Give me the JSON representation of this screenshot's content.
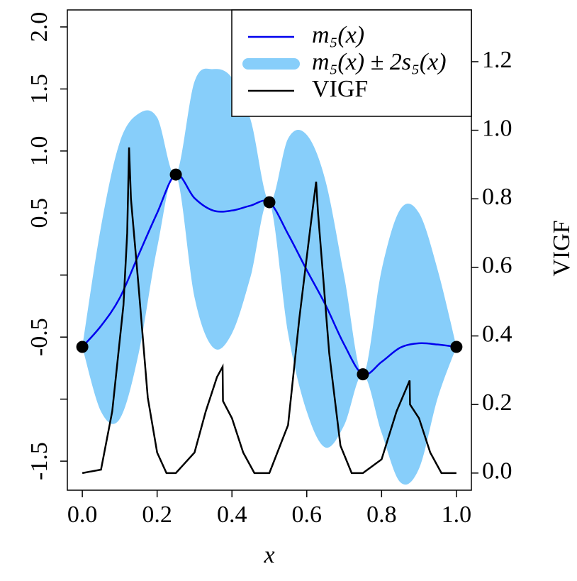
{
  "chart_data": {
    "type": "line",
    "xlabel": "x",
    "y2label": "VIGF",
    "xlim": [
      -0.04,
      1.04
    ],
    "ylim": [
      -1.734,
      2.137
    ],
    "y2lim": [
      -0.05,
      1.351
    ],
    "xticks": [
      {
        "value": 0,
        "label": "0.0"
      },
      {
        "value": 0.2,
        "label": "0.2"
      },
      {
        "value": 0.4,
        "label": "0.4"
      },
      {
        "value": 0.6,
        "label": "0.6"
      },
      {
        "value": 0.8,
        "label": "0.8"
      },
      {
        "value": 1,
        "label": "1.0"
      }
    ],
    "yticks": [
      {
        "value": -1.5,
        "label": "-1.5"
      },
      {
        "value": -1,
        "label": null
      },
      {
        "value": -0.5,
        "label": "-0.5"
      },
      {
        "value": 0,
        "label": null
      },
      {
        "value": 0.5,
        "label": "0.5"
      },
      {
        "value": 1,
        "label": "1.0"
      },
      {
        "value": 1.5,
        "label": "1.5"
      },
      {
        "value": 2,
        "label": "2.0"
      }
    ],
    "y2ticks": [
      {
        "value": 0,
        "label": "0.0"
      },
      {
        "value": 0.2,
        "label": "0.2"
      },
      {
        "value": 0.4,
        "label": "0.4"
      },
      {
        "value": 0.6,
        "label": "0.6"
      },
      {
        "value": 0.8,
        "label": "0.8"
      },
      {
        "value": 1,
        "label": "1.0"
      },
      {
        "value": 1.2,
        "label": "1.2"
      }
    ],
    "legend": "top-right",
    "band": {
      "name": "m₅(x) ± 2s₅(x)",
      "color": "#87cefa",
      "x": [
        0,
        0.05,
        0.1,
        0.15,
        0.2,
        0.25,
        0.3,
        0.35,
        0.4,
        0.45,
        0.5,
        0.55,
        0.6,
        0.65,
        0.7,
        0.75,
        0.8,
        0.85,
        0.9,
        0.95,
        1
      ],
      "upper": [
        -0.579,
        0.39,
        1.07,
        1.3,
        1.27,
        0.81,
        1.56,
        1.66,
        1.59,
        1.25,
        0.587,
        1.1,
        1.13,
        0.76,
        -0.01,
        -0.8,
        0.04,
        0.53,
        0.5,
        0.04,
        -0.579
      ],
      "lower": [
        -0.579,
        -1.1,
        -1.16,
        -0.64,
        0.22,
        0.81,
        -0.18,
        -0.585,
        -0.47,
        -0.01,
        0.587,
        -0.47,
        -1.1,
        -1.39,
        -1.21,
        -0.8,
        -1.27,
        -1.67,
        -1.56,
        -0.99,
        -0.579
      ]
    },
    "series": [
      {
        "name": "m₅(x)",
        "color": "#0000ee",
        "x": [
          0,
          0.05,
          0.1,
          0.15,
          0.2,
          0.25,
          0.3,
          0.35,
          0.4,
          0.45,
          0.5,
          0.55,
          0.6,
          0.65,
          0.7,
          0.75,
          0.8,
          0.85,
          0.9,
          0.95,
          1
        ],
        "values": [
          -0.579,
          -0.41,
          -0.185,
          0.16,
          0.5,
          0.81,
          0.62,
          0.52,
          0.52,
          0.56,
          0.587,
          0.33,
          0.04,
          -0.24,
          -0.56,
          -0.8,
          -0.7,
          -0.585,
          -0.55,
          -0.56,
          -0.579
        ]
      },
      {
        "name": "VIGF",
        "color": "#000000",
        "axis": "y2",
        "x": [
          0,
          0.05,
          0.08,
          0.11,
          0.12,
          0.125,
          0.13,
          0.15,
          0.175,
          0.2,
          0.225,
          0.25,
          0.3,
          0.33,
          0.36,
          0.375,
          0.376,
          0.4,
          0.43,
          0.46,
          0.5,
          0.55,
          0.58,
          0.61,
          0.625,
          0.63,
          0.66,
          0.69,
          0.72,
          0.75,
          0.8,
          0.84,
          0.875,
          0.876,
          0.9,
          0.93,
          0.96,
          1
        ],
        "values": [
          0,
          0.01,
          0.18,
          0.49,
          0.7,
          0.95,
          0.8,
          0.55,
          0.22,
          0.06,
          0,
          0,
          0.06,
          0.18,
          0.28,
          0.31,
          0.21,
          0.16,
          0.06,
          0,
          0,
          0.14,
          0.45,
          0.72,
          0.85,
          0.76,
          0.35,
          0.08,
          0,
          0,
          0.04,
          0.18,
          0.27,
          0.2,
          0.16,
          0.06,
          0,
          0
        ]
      }
    ],
    "points": {
      "color": "#000000",
      "x": [
        0,
        0.25,
        0.5,
        0.75,
        1
      ],
      "values": [
        -0.579,
        0.81,
        0.587,
        -0.8,
        -0.579
      ]
    }
  }
}
